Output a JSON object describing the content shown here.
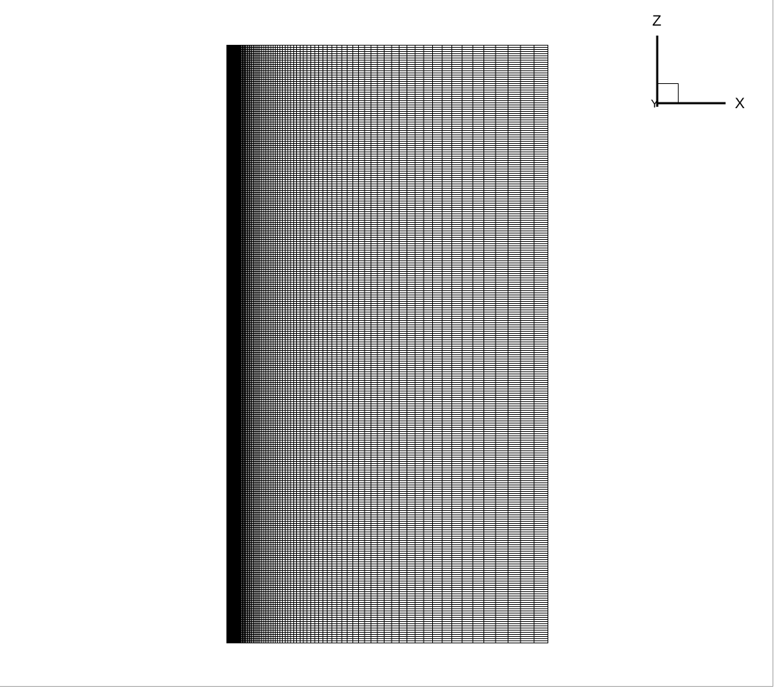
{
  "view": {
    "background_color": "#ffffff",
    "line_color": "#000000"
  },
  "mesh": {
    "columns": 110,
    "rows": 280,
    "x_stretch_ratio": 1.045
  },
  "axis_triad": {
    "labels": {
      "vertical": "Z",
      "horizontal": "X",
      "depth": "Y"
    }
  }
}
